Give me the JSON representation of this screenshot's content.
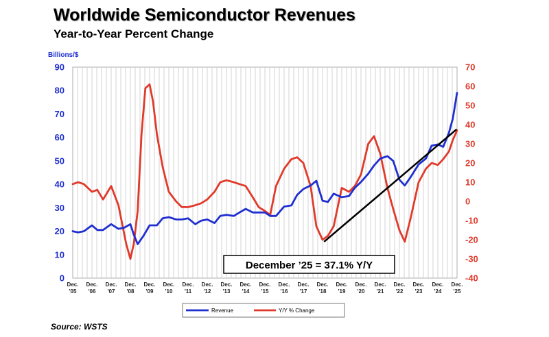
{
  "colors": {
    "revenue": "#1f2fd0",
    "yoy": "#e03a2b",
    "grid": "#c8c8c8",
    "trend": "#000000"
  },
  "chart_data": {
    "type": "line",
    "title": "Worldwide Semiconductor Revenues",
    "subtitle": "Year-to-Year Percent Change",
    "source": "Source: WSTS",
    "left_axis_label": "Billions/$",
    "left_ylim": [
      0,
      90
    ],
    "left_ticks": [
      0,
      10,
      20,
      30,
      40,
      50,
      60,
      70,
      80,
      90
    ],
    "right_ylim": [
      -40,
      70
    ],
    "right_ticks": [
      -40,
      -30,
      -20,
      -10,
      0,
      10,
      20,
      30,
      40,
      50,
      60,
      70
    ],
    "x_range": [
      2005.92,
      2025.92
    ],
    "x_ticks": [
      {
        "line1": "Dec.",
        "line2": "'05"
      },
      {
        "line1": "Dec.",
        "line2": "'06"
      },
      {
        "line1": "Dec.",
        "line2": "'07"
      },
      {
        "line1": "Dec.",
        "line2": "'08"
      },
      {
        "line1": "Dec.",
        "line2": "'09"
      },
      {
        "line1": "Dec.",
        "line2": "'10"
      },
      {
        "line1": "Dec.",
        "line2": "'11"
      },
      {
        "line1": "Dec.",
        "line2": "'12"
      },
      {
        "line1": "Dec.",
        "line2": "'13"
      },
      {
        "line1": "Dec.",
        "line2": "'14"
      },
      {
        "line1": "Dec.",
        "line2": "'15"
      },
      {
        "line1": "Dec.",
        "line2": "'16"
      },
      {
        "line1": "Dec.",
        "line2": "'17"
      },
      {
        "line1": "Dec.",
        "line2": "'18"
      },
      {
        "line1": "Dec.",
        "line2": "'19"
      },
      {
        "line1": "Dec.",
        "line2": "'20"
      },
      {
        "line1": "Dec.",
        "line2": "'21"
      },
      {
        "line1": "Dec.",
        "line2": "'22"
      },
      {
        "line1": "Dec.",
        "line2": "'23"
      },
      {
        "line1": "Dec.",
        "line2": "'24"
      },
      {
        "line1": "Dec.",
        "line2": "'25"
      }
    ],
    "annotation": "December ’25 = 37.1% Y/Y",
    "legend": [
      "Revenue",
      "Y/Y % Change"
    ],
    "series": [
      {
        "name": "Revenue",
        "axis": "left",
        "x": [
          2005.92,
          2006.2,
          2006.5,
          2006.92,
          2007.2,
          2007.5,
          2007.92,
          2008.3,
          2008.6,
          2008.92,
          2009.1,
          2009.3,
          2009.6,
          2009.92,
          2010.3,
          2010.6,
          2010.92,
          2011.3,
          2011.6,
          2011.92,
          2012.3,
          2012.6,
          2012.92,
          2013.3,
          2013.6,
          2013.92,
          2014.3,
          2014.6,
          2014.92,
          2015.3,
          2015.6,
          2015.92,
          2016.2,
          2016.5,
          2016.92,
          2017.3,
          2017.6,
          2017.92,
          2018.3,
          2018.6,
          2018.92,
          2019.2,
          2019.5,
          2019.92,
          2020.3,
          2020.6,
          2020.92,
          2021.3,
          2021.6,
          2021.92,
          2022.3,
          2022.6,
          2022.92,
          2023.2,
          2023.5,
          2023.92,
          2024.3,
          2024.6,
          2024.92,
          2025.2,
          2025.5,
          2025.7,
          2025.92
        ],
        "values": [
          20,
          19.5,
          20,
          22.5,
          20.5,
          20.5,
          23,
          21,
          21.5,
          23,
          18.5,
          14.5,
          18,
          22.5,
          22.5,
          25.5,
          26,
          25,
          25,
          25.5,
          23,
          24.5,
          25,
          23.5,
          26.5,
          27,
          26.5,
          28,
          29.5,
          28,
          28,
          28,
          26.5,
          26.5,
          30.5,
          31,
          35.5,
          38,
          39.5,
          41.5,
          33,
          32.5,
          36,
          34.5,
          35,
          38.5,
          41,
          44.5,
          48,
          51,
          52,
          50,
          42,
          39.5,
          43,
          48.5,
          51,
          56.5,
          57,
          56,
          62,
          68,
          79
        ]
      },
      {
        "name": "Y/Y % Change",
        "axis": "right",
        "x": [
          2005.92,
          2006.2,
          2006.5,
          2006.92,
          2007.2,
          2007.5,
          2007.92,
          2008.3,
          2008.5,
          2008.7,
          2008.92,
          2009.1,
          2009.3,
          2009.5,
          2009.7,
          2009.92,
          2010.1,
          2010.3,
          2010.6,
          2010.92,
          2011.3,
          2011.6,
          2011.92,
          2012.3,
          2012.6,
          2012.92,
          2013.3,
          2013.6,
          2013.92,
          2014.3,
          2014.6,
          2014.92,
          2015.3,
          2015.6,
          2015.92,
          2016.2,
          2016.5,
          2016.92,
          2017.3,
          2017.6,
          2017.92,
          2018.3,
          2018.6,
          2018.92,
          2019.2,
          2019.5,
          2019.92,
          2020.3,
          2020.6,
          2020.92,
          2021.3,
          2021.6,
          2021.92,
          2022.3,
          2022.6,
          2022.92,
          2023.2,
          2023.5,
          2023.92,
          2024.3,
          2024.6,
          2024.92,
          2025.2,
          2025.5,
          2025.7,
          2025.92
        ],
        "values": [
          9,
          10,
          9,
          5,
          6,
          1,
          8,
          -2,
          -12,
          -22,
          -30,
          -22,
          -5,
          35,
          59,
          61,
          52,
          35,
          18,
          5,
          0,
          -3,
          -3,
          -2,
          -1,
          1,
          5,
          10,
          11,
          10,
          9,
          8,
          2,
          -3,
          -5,
          -7,
          8,
          17,
          22,
          23,
          20,
          8,
          -13,
          -20,
          -18,
          -13,
          7,
          5,
          8,
          14,
          30,
          34,
          25,
          7,
          -4,
          -15,
          -21,
          -9,
          10,
          17,
          20,
          19,
          22,
          26,
          32,
          37
        ]
      }
    ]
  }
}
